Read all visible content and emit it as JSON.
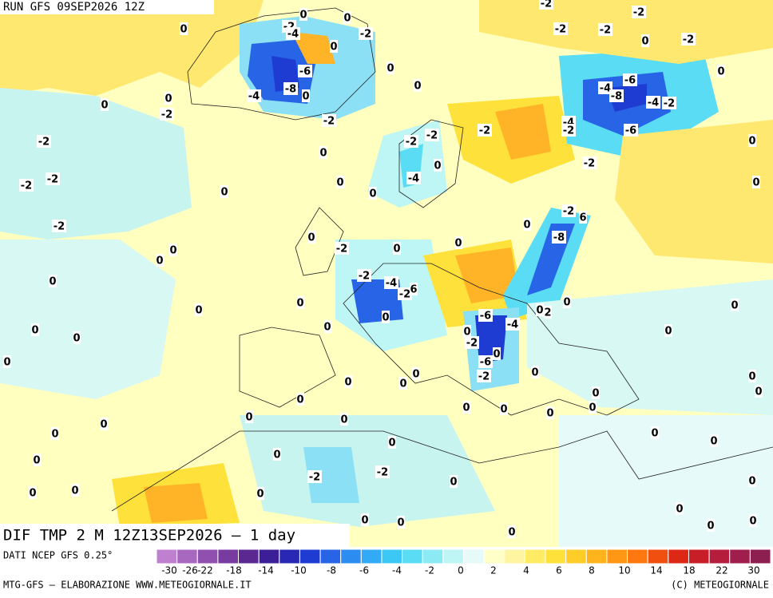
{
  "header": {
    "run": "RUN GFS 09SEP2026 12Z"
  },
  "map": {
    "title": "DIF TMP 2 M 12Z13SEP2026 – 1 day",
    "contour_labels": [
      0,
      0,
      -2,
      -2,
      0,
      -2,
      -4,
      -2,
      -2,
      -2,
      0,
      -2,
      0,
      -6,
      0,
      0,
      -8,
      0,
      -4,
      0,
      -6,
      -4,
      -8,
      -4,
      -2,
      0,
      0,
      -2,
      -2,
      -4,
      -2,
      -2,
      -6,
      -2,
      -2,
      -2,
      0,
      0,
      0,
      -2,
      -4,
      -2,
      -2,
      0,
      0,
      0,
      0,
      -2,
      6,
      0,
      -2,
      0,
      -8,
      0,
      0,
      -2,
      0,
      0,
      -2,
      -4,
      0,
      -2,
      6,
      0,
      0,
      0,
      0,
      0,
      2,
      0,
      -6,
      -4,
      0,
      0,
      0,
      0,
      0,
      -2,
      0,
      -6,
      0,
      0,
      0,
      0,
      0,
      -2,
      0,
      0,
      0,
      0,
      0,
      0,
      0,
      0,
      0,
      0,
      0,
      0,
      0,
      0,
      0,
      0,
      0,
      -2,
      -2,
      0,
      0,
      0,
      0,
      0,
      0,
      0,
      0,
      0,
      0,
      0
    ]
  },
  "legend": {
    "source": "DATI NCEP GFS 0.25°",
    "colors": [
      "#c080d0",
      "#a868c0",
      "#9050b0",
      "#783ca0",
      "#5a2890",
      "#3c1e96",
      "#2828b4",
      "#1e3cd2",
      "#2864e6",
      "#2d8cf0",
      "#32aaf5",
      "#3cc8f5",
      "#5adcf5",
      "#8ceaf5",
      "#bef5f5",
      "#e6fafa",
      "#ffffc8",
      "#fff5a0",
      "#ffeb64",
      "#ffe13c",
      "#ffcd28",
      "#ffb41e",
      "#ff9614",
      "#ff780f",
      "#f0500f",
      "#dc2814",
      "#c81e28",
      "#b41e3c",
      "#a01e4b",
      "#8c1e50"
    ],
    "labels": [
      -30,
      -26,
      -22,
      -18,
      -14,
      -10,
      -8,
      -6,
      -4,
      -2,
      0,
      2,
      4,
      6,
      8,
      10,
      14,
      18,
      22,
      30
    ]
  },
  "footer": {
    "left": "MTG-GFS – ELABORAZIONE WWW.METEOGIORNALE.IT",
    "right": "(C) METEOGIORNALE"
  }
}
